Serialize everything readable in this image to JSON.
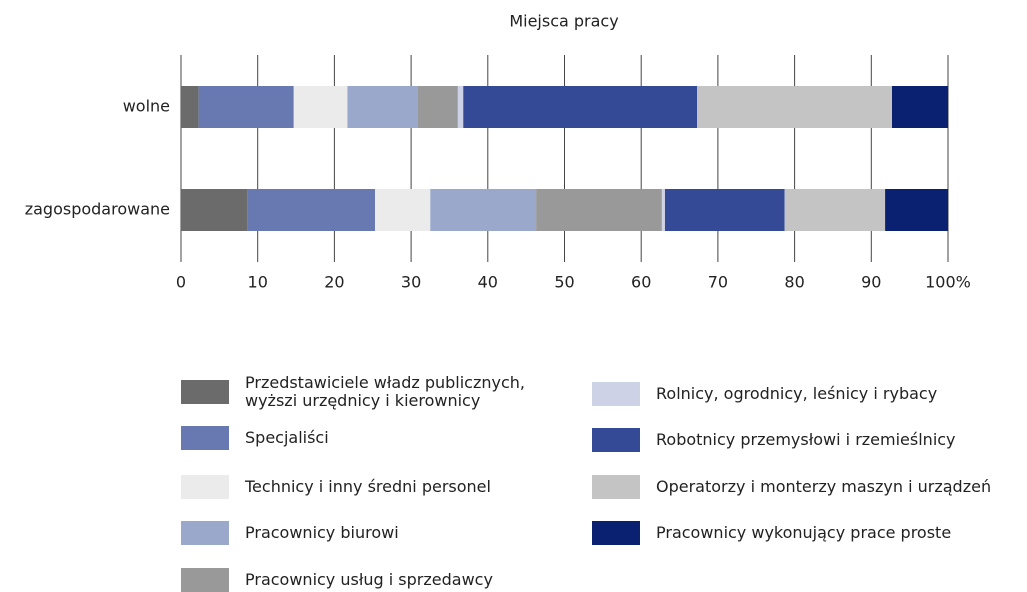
{
  "chart_data": {
    "type": "stacked_barh",
    "title": "Miejsca pracy",
    "categories": [
      "wolne",
      "zagospodarowane"
    ],
    "series": [
      {
        "name": "Przedstawiciele władz publicznych, wyższi urzędnicy i kierownicy",
        "color": "#6b6b6b",
        "values": [
          2.3,
          8.7
        ]
      },
      {
        "name": "Specjaliści",
        "color": "#6878b0",
        "values": [
          12.4,
          16.6
        ]
      },
      {
        "name": "Technicy i inny średni personel",
        "color": "#ebebeb",
        "values": [
          7.0,
          7.2
        ]
      },
      {
        "name": "Pracownicy biurowi",
        "color": "#9aa8cc",
        "values": [
          9.1,
          13.8
        ]
      },
      {
        "name": "Pracownicy usług i sprzedawcy",
        "color": "#999999",
        "values": [
          5.3,
          16.4
        ]
      },
      {
        "name": "Rolnicy, ogrodnicy, leśnicy i rybacy",
        "color": "#cdd2e6",
        "values": [
          0.7,
          0.4
        ]
      },
      {
        "name": "Robotnicy przemysłowi i rzemieślnicy",
        "color": "#344a96",
        "values": [
          30.5,
          15.6
        ]
      },
      {
        "name": "Operatorzy i monterzy maszyn i urządzeń",
        "color": "#c4c4c4",
        "values": [
          25.4,
          13.1
        ]
      },
      {
        "name": "Pracownicy wykonujący prace proste",
        "color": "#0a2070",
        "values": [
          7.3,
          8.2
        ]
      }
    ],
    "xlim": [
      0,
      100
    ],
    "xticks": [
      0,
      10,
      20,
      30,
      40,
      50,
      60,
      70,
      80,
      90,
      {
        "value": 100,
        "label": "100%"
      }
    ],
    "grid": true
  }
}
